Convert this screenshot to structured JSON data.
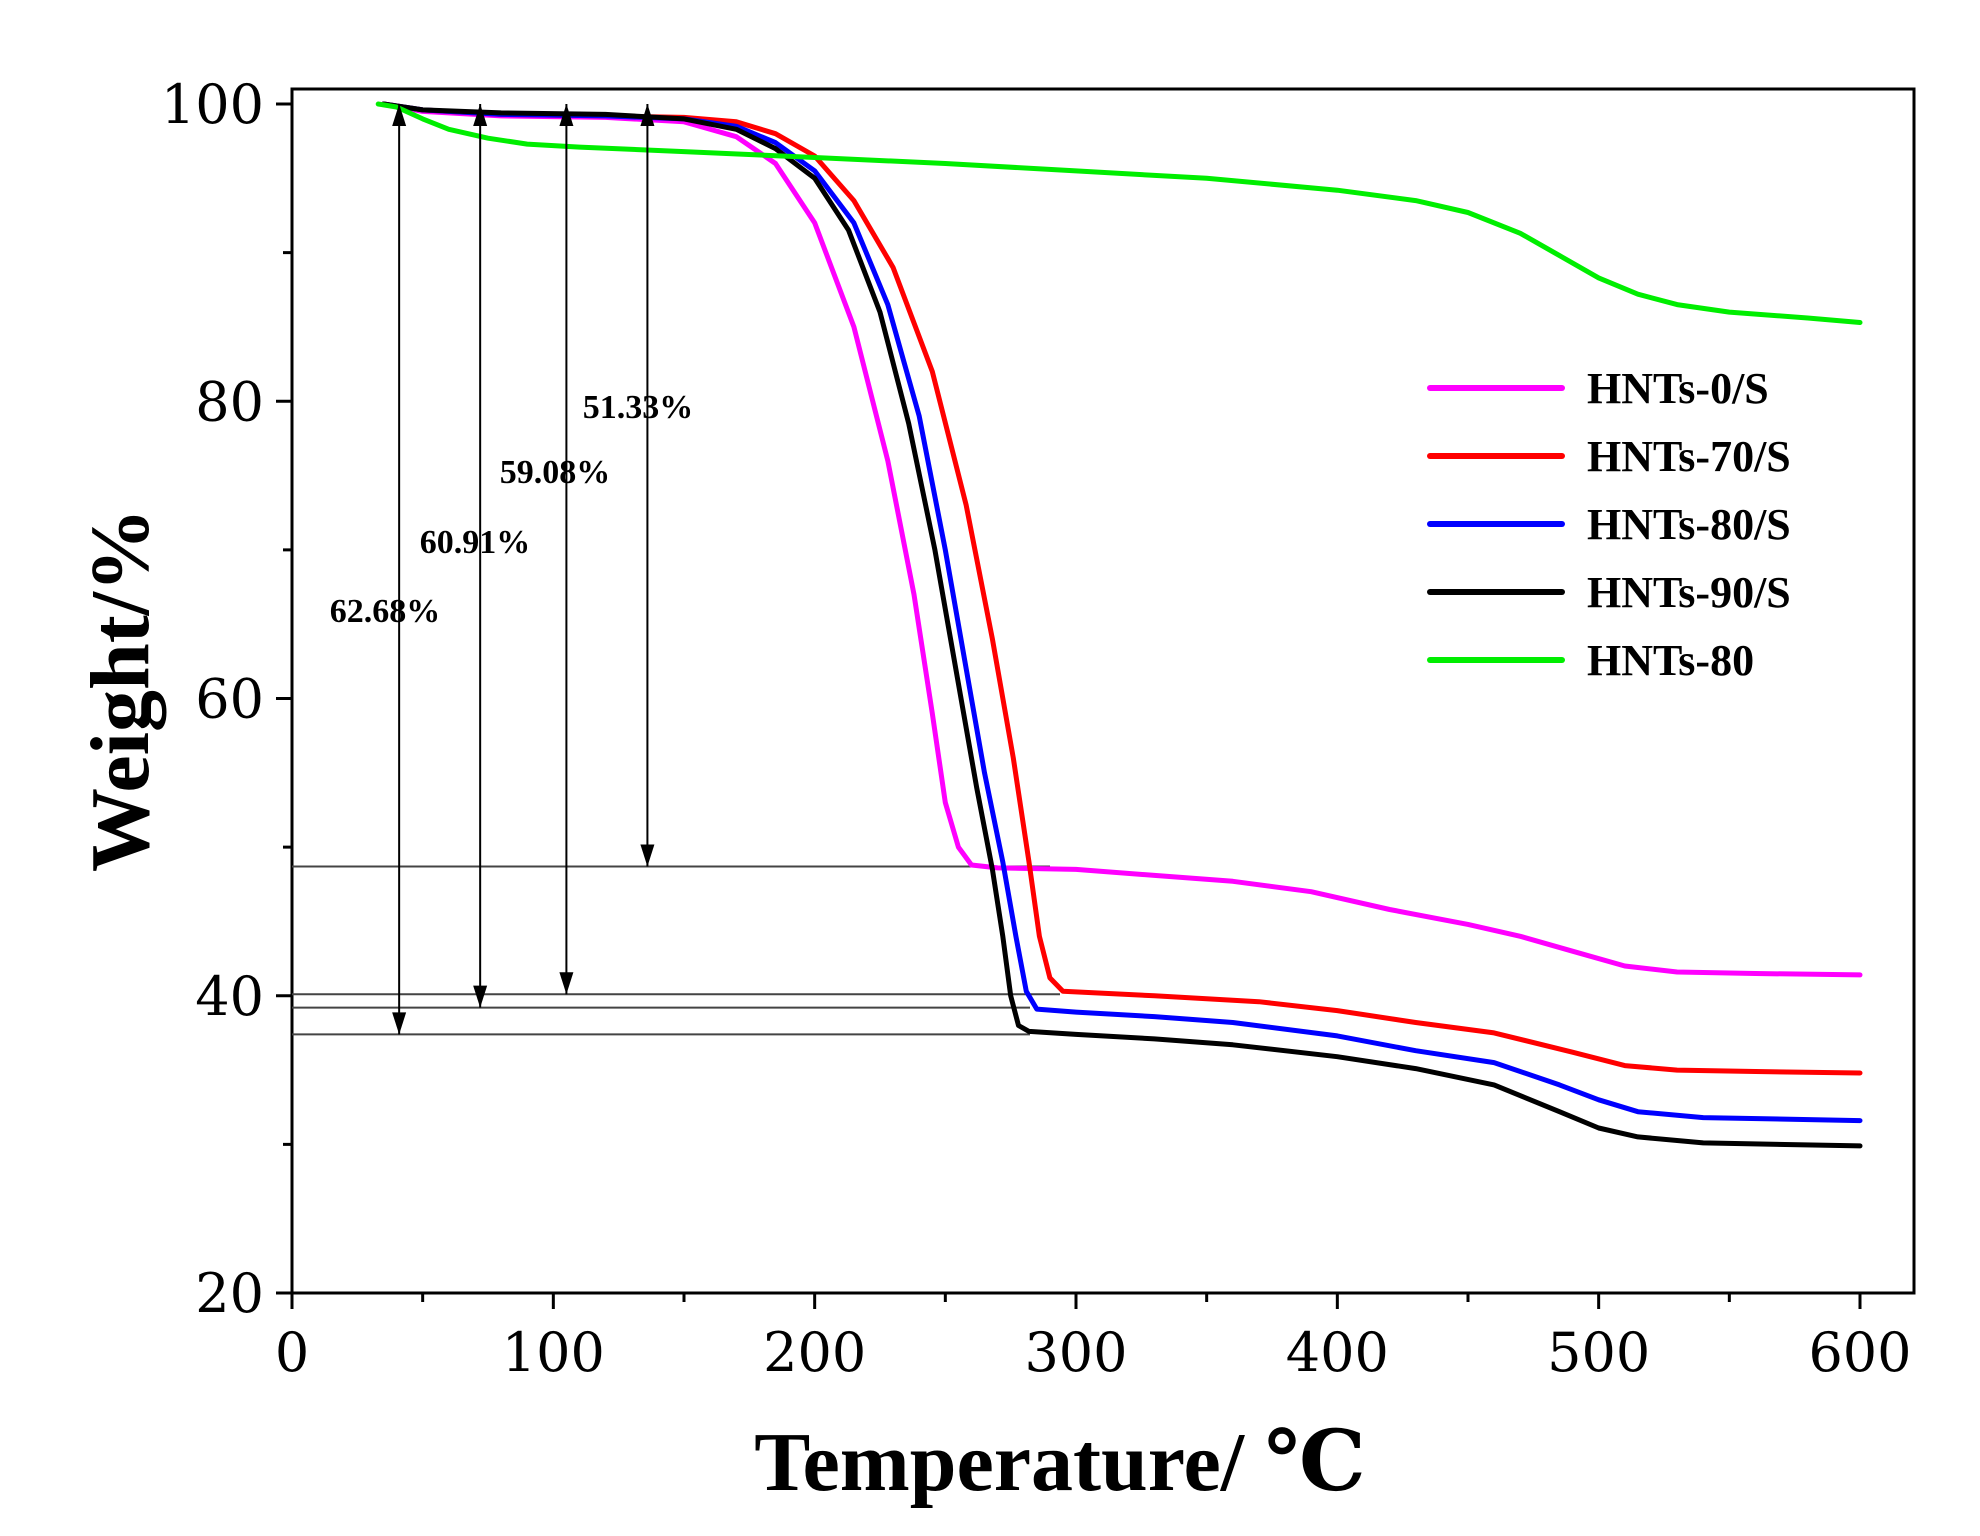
{
  "chart_data": {
    "type": "line",
    "title": "",
    "xlabel": "Temperature/ ℃",
    "ylabel": "Weight/%",
    "xlim": [
      0,
      620
    ],
    "ylim": [
      20,
      101
    ],
    "xticks": [
      0,
      100,
      200,
      300,
      400,
      500,
      600
    ],
    "xtick_labels": [
      "0",
      "100",
      "200",
      "300",
      "400",
      "500",
      "600"
    ],
    "yticks": [
      20,
      40,
      60,
      80,
      100
    ],
    "ytick_labels": [
      "20",
      "40",
      "60",
      "80",
      "100"
    ],
    "legend_position": "right",
    "series": [
      {
        "name": "HNTs-0/S",
        "color": "#ff00ff",
        "points": [
          [
            35,
            100
          ],
          [
            50,
            99.5
          ],
          [
            80,
            99.2
          ],
          [
            120,
            99.1
          ],
          [
            150,
            98.8
          ],
          [
            170,
            97.8
          ],
          [
            185,
            96
          ],
          [
            200,
            92
          ],
          [
            215,
            85
          ],
          [
            228,
            76
          ],
          [
            238,
            67
          ],
          [
            245,
            59
          ],
          [
            250,
            53
          ],
          [
            255,
            50
          ],
          [
            260,
            48.8
          ],
          [
            270,
            48.6
          ],
          [
            300,
            48.5
          ],
          [
            330,
            48.1
          ],
          [
            360,
            47.7
          ],
          [
            390,
            47
          ],
          [
            420,
            45.8
          ],
          [
            450,
            44.8
          ],
          [
            470,
            44
          ],
          [
            490,
            43
          ],
          [
            510,
            42
          ],
          [
            530,
            41.6
          ],
          [
            560,
            41.5
          ],
          [
            600,
            41.4
          ]
        ]
      },
      {
        "name": "HNTs-70/S",
        "color": "#ff0000",
        "points": [
          [
            35,
            100
          ],
          [
            50,
            99.6
          ],
          [
            80,
            99.3
          ],
          [
            120,
            99.2
          ],
          [
            150,
            99.1
          ],
          [
            170,
            98.8
          ],
          [
            185,
            98
          ],
          [
            200,
            96.5
          ],
          [
            215,
            93.5
          ],
          [
            230,
            89
          ],
          [
            245,
            82
          ],
          [
            258,
            73
          ],
          [
            268,
            64
          ],
          [
            276,
            56
          ],
          [
            282,
            49
          ],
          [
            286,
            44
          ],
          [
            290,
            41.2
          ],
          [
            295,
            40.3
          ],
          [
            330,
            40
          ],
          [
            370,
            39.6
          ],
          [
            400,
            39
          ],
          [
            430,
            38.2
          ],
          [
            460,
            37.5
          ],
          [
            490,
            36.2
          ],
          [
            510,
            35.3
          ],
          [
            530,
            35
          ],
          [
            560,
            34.9
          ],
          [
            600,
            34.8
          ]
        ]
      },
      {
        "name": "HNTs-80/S",
        "color": "#0000ff",
        "points": [
          [
            35,
            100
          ],
          [
            50,
            99.6
          ],
          [
            80,
            99.3
          ],
          [
            120,
            99.2
          ],
          [
            150,
            99
          ],
          [
            170,
            98.5
          ],
          [
            185,
            97.4
          ],
          [
            200,
            95.5
          ],
          [
            215,
            92
          ],
          [
            228,
            86.5
          ],
          [
            240,
            79
          ],
          [
            250,
            70
          ],
          [
            258,
            62
          ],
          [
            265,
            55
          ],
          [
            272,
            49
          ],
          [
            277,
            44
          ],
          [
            281,
            40.3
          ],
          [
            285,
            39.1
          ],
          [
            300,
            38.9
          ],
          [
            330,
            38.6
          ],
          [
            360,
            38.2
          ],
          [
            400,
            37.3
          ],
          [
            430,
            36.3
          ],
          [
            460,
            35.5
          ],
          [
            485,
            34
          ],
          [
            500,
            33
          ],
          [
            515,
            32.2
          ],
          [
            540,
            31.8
          ],
          [
            600,
            31.6
          ]
        ]
      },
      {
        "name": "HNTs-90/S",
        "color": "#000000",
        "points": [
          [
            35,
            100
          ],
          [
            50,
            99.6
          ],
          [
            80,
            99.4
          ],
          [
            120,
            99.3
          ],
          [
            150,
            99
          ],
          [
            170,
            98.3
          ],
          [
            185,
            97
          ],
          [
            200,
            95
          ],
          [
            213,
            91.5
          ],
          [
            225,
            86
          ],
          [
            236,
            78.5
          ],
          [
            246,
            70
          ],
          [
            255,
            61
          ],
          [
            262,
            54
          ],
          [
            268,
            48.5
          ],
          [
            272,
            44
          ],
          [
            275,
            40
          ],
          [
            278,
            38
          ],
          [
            282,
            37.6
          ],
          [
            300,
            37.4
          ],
          [
            330,
            37.1
          ],
          [
            360,
            36.7
          ],
          [
            400,
            35.9
          ],
          [
            430,
            35.1
          ],
          [
            460,
            34
          ],
          [
            485,
            32.2
          ],
          [
            500,
            31.1
          ],
          [
            515,
            30.5
          ],
          [
            540,
            30.1
          ],
          [
            600,
            29.9
          ]
        ]
      },
      {
        "name": "HNTs-80",
        "color": "#00ee00",
        "points": [
          [
            33,
            100
          ],
          [
            40,
            99.8
          ],
          [
            50,
            99
          ],
          [
            60,
            98.3
          ],
          [
            75,
            97.7
          ],
          [
            90,
            97.3
          ],
          [
            110,
            97.1
          ],
          [
            150,
            96.8
          ],
          [
            200,
            96.4
          ],
          [
            250,
            96
          ],
          [
            300,
            95.5
          ],
          [
            350,
            95
          ],
          [
            400,
            94.2
          ],
          [
            430,
            93.5
          ],
          [
            450,
            92.7
          ],
          [
            470,
            91.3
          ],
          [
            485,
            89.8
          ],
          [
            500,
            88.3
          ],
          [
            515,
            87.2
          ],
          [
            530,
            86.5
          ],
          [
            550,
            86
          ],
          [
            580,
            85.6
          ],
          [
            600,
            85.3
          ]
        ]
      }
    ],
    "reference_lines": [
      48.7,
      40.1,
      39.2,
      37.4
    ],
    "annotations": [
      {
        "text": "62.68%",
        "x": 41,
        "y_top": 100,
        "y_bottom": 37.4
      },
      {
        "text": "60.91%",
        "x": 72,
        "y_top": 100,
        "y_bottom": 39.2
      },
      {
        "text": "59.08%",
        "x": 105,
        "y_top": 100,
        "y_bottom": 40.1
      },
      {
        "text": "51.33%",
        "x": 136,
        "y_top": 100,
        "y_bottom": 48.7
      }
    ]
  }
}
